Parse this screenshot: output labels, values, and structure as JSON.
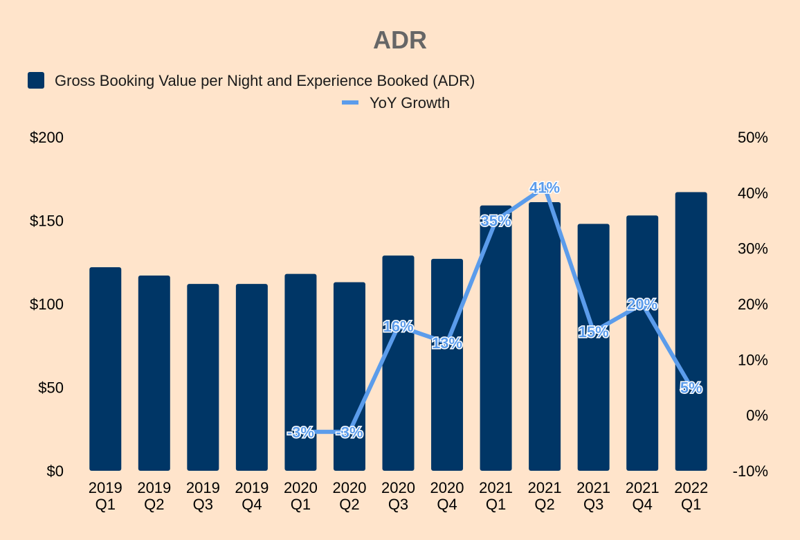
{
  "chart_data": {
    "type": "bar",
    "title": "ADR",
    "categories": [
      [
        "2019",
        "Q1"
      ],
      [
        "2019",
        "Q2"
      ],
      [
        "2019",
        "Q3"
      ],
      [
        "2019",
        "Q4"
      ],
      [
        "2020",
        "Q1"
      ],
      [
        "2020",
        "Q2"
      ],
      [
        "2020",
        "Q3"
      ],
      [
        "2020",
        "Q4"
      ],
      [
        "2021",
        "Q1"
      ],
      [
        "2021",
        "Q2"
      ],
      [
        "2021",
        "Q3"
      ],
      [
        "2021",
        "Q4"
      ],
      [
        "2022",
        "Q1"
      ]
    ],
    "series": [
      {
        "name": "Gross Booking Value per Night and Experience Booked (ADR)",
        "type": "bar",
        "axis": "left",
        "color": "#003666",
        "values": [
          122,
          117,
          112,
          112,
          118,
          113,
          129,
          127,
          159,
          161,
          148,
          153,
          167
        ]
      },
      {
        "name": "YoY Growth",
        "type": "line",
        "axis": "right",
        "color": "#5B9CEB",
        "values": [
          null,
          null,
          null,
          null,
          -3,
          -3,
          16,
          13,
          35,
          41,
          15,
          20,
          5
        ],
        "labels": [
          null,
          null,
          null,
          null,
          "-3%",
          "-3%",
          "16%",
          "13%",
          "35%",
          "41%",
          "15%",
          "20%",
          "5%"
        ]
      }
    ],
    "y_left": {
      "min": 0,
      "max": 200,
      "ticks": [
        "$0",
        "$50",
        "$100",
        "$150",
        "$200"
      ],
      "tick_values": [
        0,
        50,
        100,
        150,
        200
      ]
    },
    "y_right": {
      "min": -10,
      "max": 50,
      "ticks": [
        "-10%",
        "0%",
        "10%",
        "20%",
        "30%",
        "40%",
        "50%"
      ],
      "tick_values": [
        -10,
        0,
        10,
        20,
        30,
        40,
        50
      ]
    },
    "grid": false,
    "legend_position": "top-center"
  }
}
